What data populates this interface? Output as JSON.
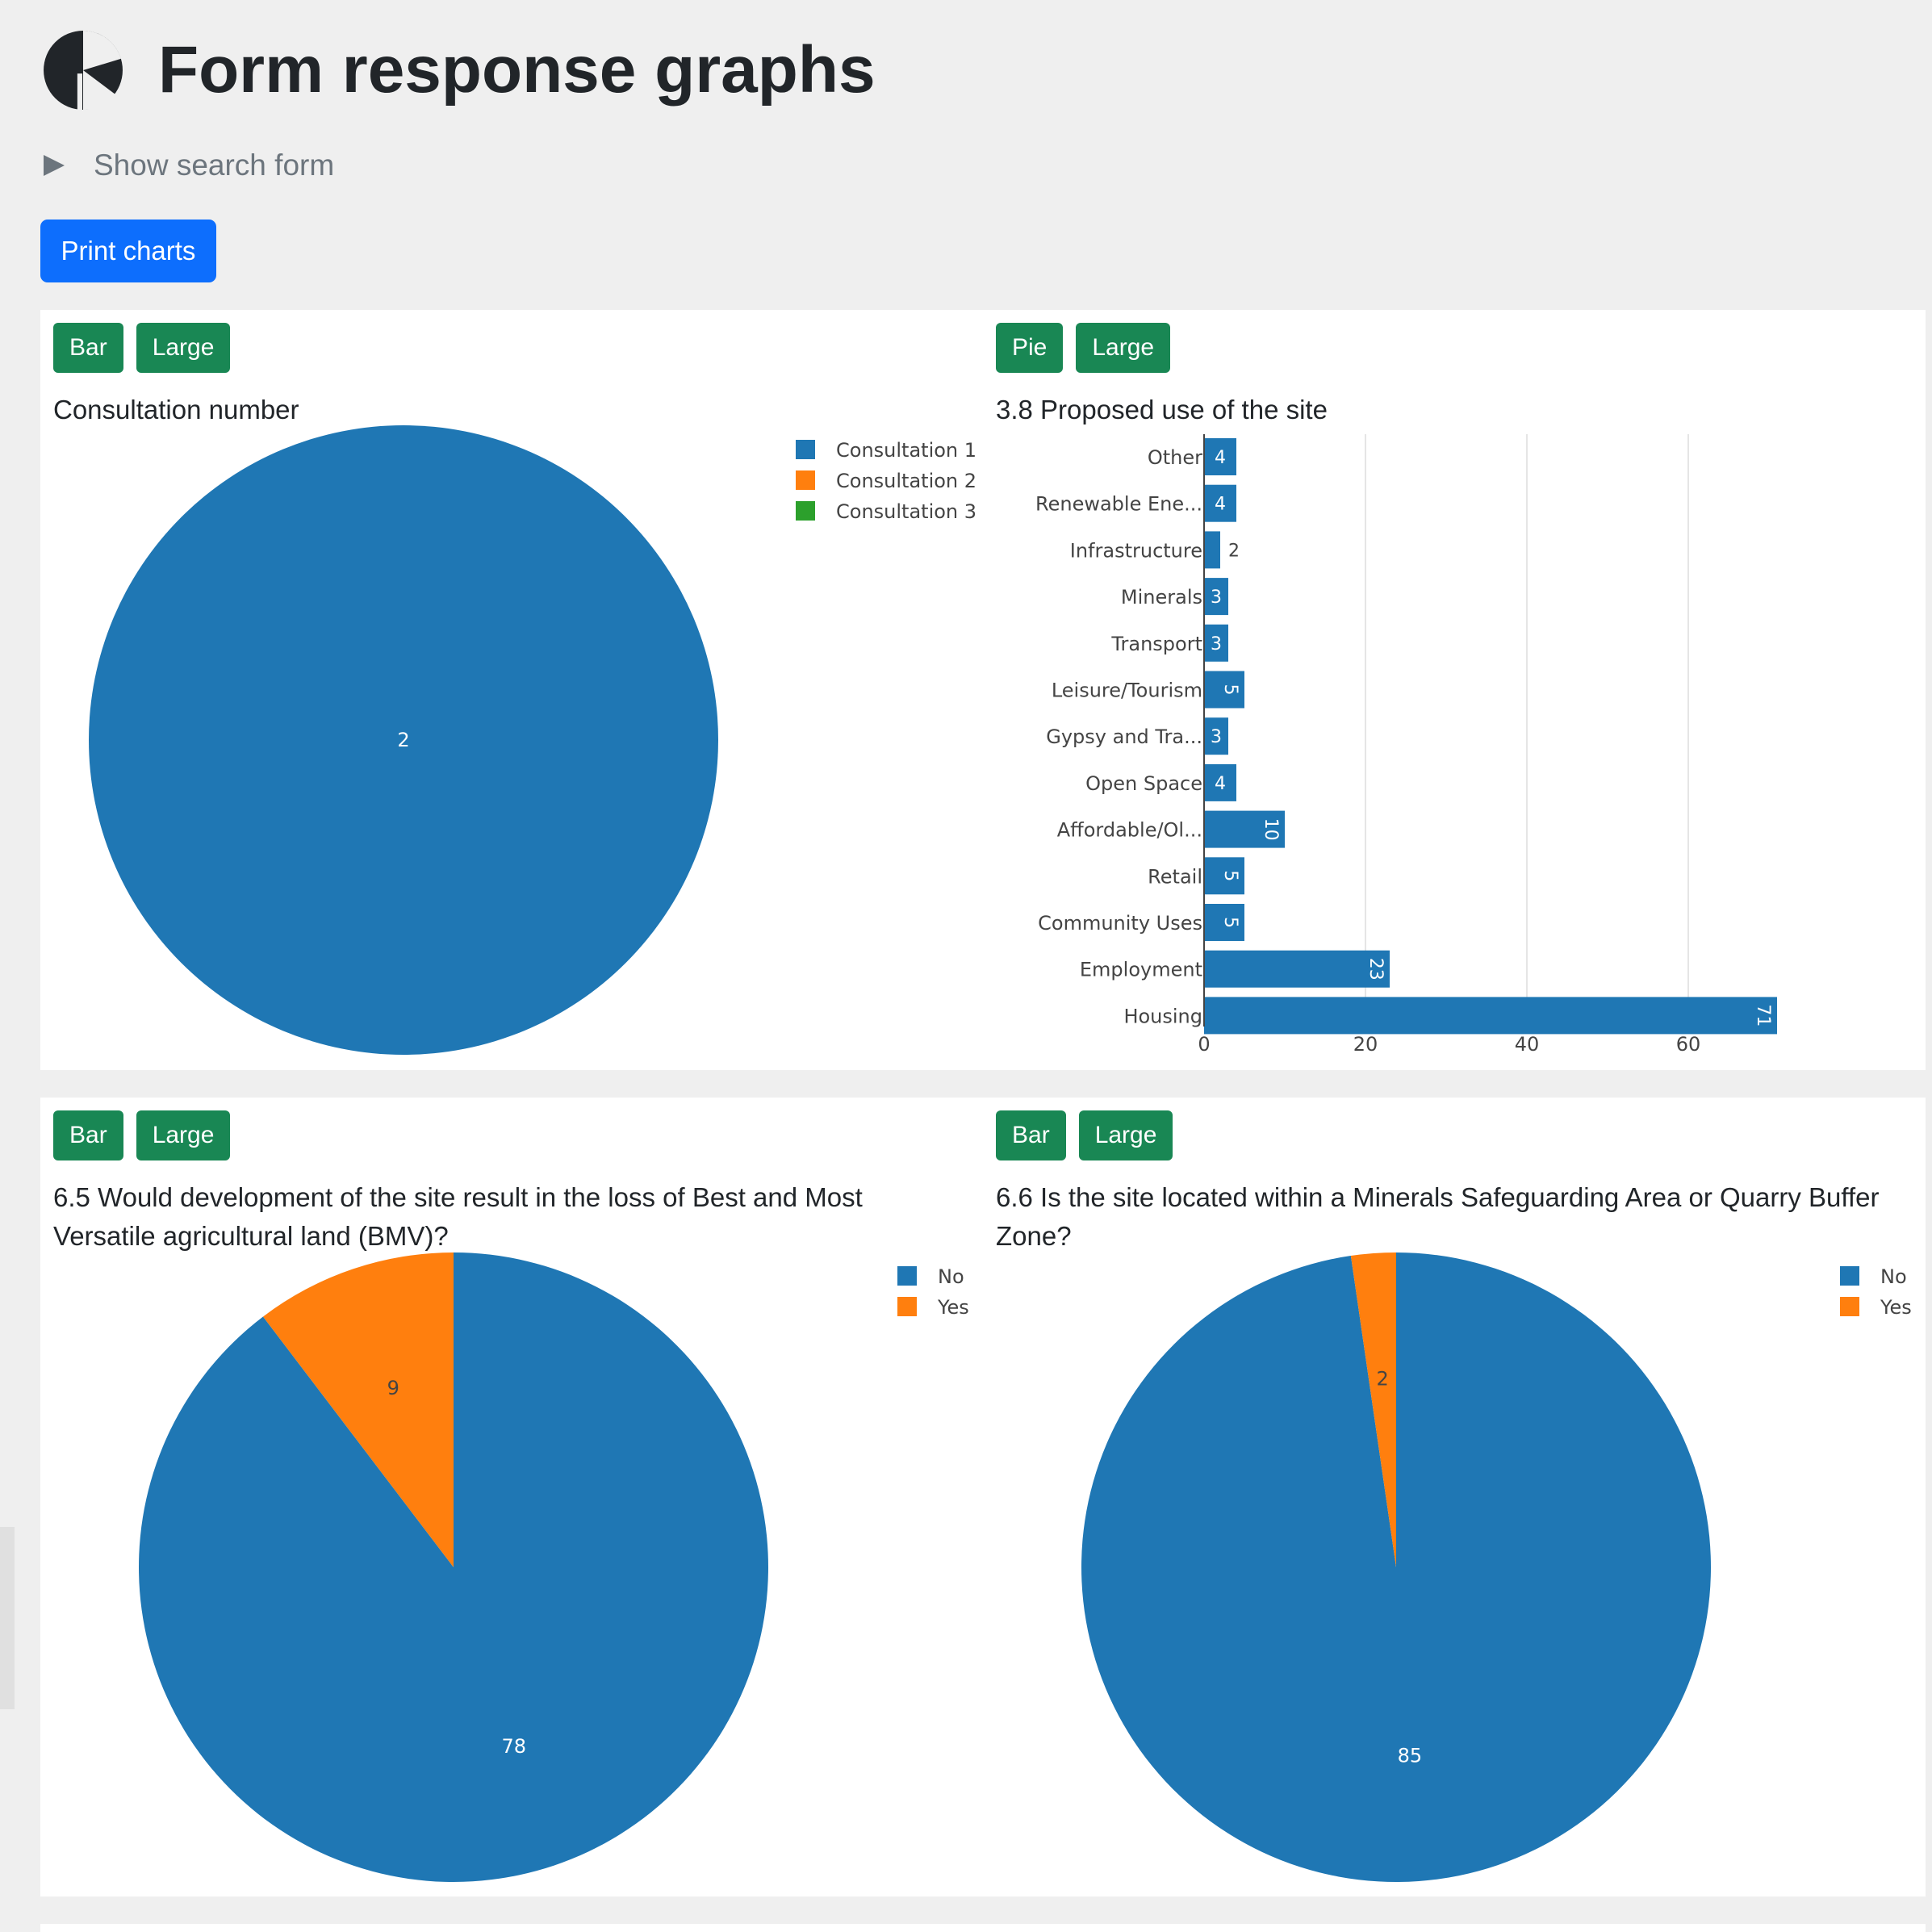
{
  "page": {
    "title": "Form response graphs"
  },
  "search": {
    "toggle_label": "Show search form"
  },
  "toolbar": {
    "print_label": "Print charts"
  },
  "colors": {
    "blue": "#1f77b4",
    "orange": "#ff7f0e",
    "green": "#2ca02c",
    "btn_primary": "#0d6efd",
    "btn_success": "#198754"
  },
  "charts": [
    {
      "buttons": [
        "Bar",
        "Large"
      ],
      "title": "Consultation number"
    },
    {
      "buttons": [
        "Pie",
        "Large"
      ],
      "title": "3.8 Proposed use of the site"
    },
    {
      "buttons": [
        "Bar",
        "Large"
      ],
      "title": "6.5 Would development of the site result in the loss of Best and Most Versatile agricultural land (BMV)?"
    },
    {
      "buttons": [
        "Bar",
        "Large"
      ],
      "title": "6.6 Is the site located within a Minerals Safeguarding Area or Quarry Buffer Zone?"
    }
  ],
  "chart_data": [
    {
      "type": "pie",
      "title": "Consultation number",
      "legend": [
        "Consultation 1",
        "Consultation 2",
        "Consultation 3"
      ],
      "values": [
        2,
        0,
        0
      ],
      "colors": [
        "#1f77b4",
        "#ff7f0e",
        "#2ca02c"
      ],
      "legend_position": "top-right"
    },
    {
      "type": "bar",
      "orientation": "horizontal",
      "title": "3.8 Proposed use of the site",
      "categories": [
        "Other",
        "Renewable Ene...",
        "Infrastructure",
        "Minerals",
        "Transport",
        "Leisure/Tourism",
        "Gypsy and Tra...",
        "Open Space",
        "Affordable/Ol...",
        "Retail",
        "Community Uses",
        "Employment",
        "Housing"
      ],
      "values": [
        4,
        4,
        2,
        3,
        3,
        5,
        3,
        4,
        10,
        5,
        5,
        23,
        71
      ],
      "x_ticks": [
        0,
        20,
        40,
        60
      ],
      "xlim": [
        0,
        74.8
      ],
      "color": "#1f77b4",
      "grid": true
    },
    {
      "type": "pie",
      "title": "6.5 Would development of the site result in the loss of Best and Most Versatile agricultural land (BMV)?",
      "legend": [
        "No",
        "Yes"
      ],
      "values": [
        78,
        9
      ],
      "colors": [
        "#1f77b4",
        "#ff7f0e"
      ],
      "legend_position": "top-right"
    },
    {
      "type": "pie",
      "title": "6.6 Is the site located within a Minerals Safeguarding Area or Quarry Buffer Zone?",
      "legend": [
        "No",
        "Yes"
      ],
      "values": [
        85,
        2
      ],
      "colors": [
        "#1f77b4",
        "#ff7f0e"
      ],
      "legend_position": "top-right"
    }
  ]
}
